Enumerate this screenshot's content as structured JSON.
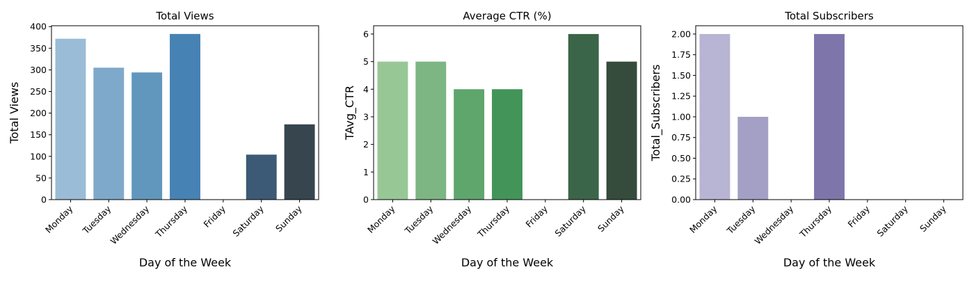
{
  "chart_data": [
    {
      "type": "bar",
      "title": "Total Views",
      "xlabel": "Day of the Week",
      "ylabel": "Total Views",
      "categories": [
        "Monday",
        "Tuesday",
        "Wednesday",
        "Thursday",
        "Friday",
        "Saturday",
        "Sunday"
      ],
      "values": [
        372,
        305,
        294,
        383,
        0,
        104,
        174
      ],
      "ylim": [
        0,
        402
      ],
      "yticks": [
        "0",
        "50",
        "100",
        "150",
        "200",
        "250",
        "300",
        "350",
        "400"
      ],
      "ytick_values": [
        0,
        50,
        100,
        150,
        200,
        250,
        300,
        350,
        400
      ],
      "colors": [
        "#9abcd6",
        "#7ea9ca",
        "#6297bd",
        "#4682b4",
        "#4a6e8e",
        "#3c5a75",
        "#37454f"
      ],
      "grid": false,
      "legend": false
    },
    {
      "type": "bar",
      "title": "Average CTR (%)",
      "xlabel": "Day of the Week",
      "ylabel": "TAvg_CTR",
      "categories": [
        "Monday",
        "Tuesday",
        "Wednesday",
        "Thursday",
        "Friday",
        "Saturday",
        "Sunday"
      ],
      "values": [
        5,
        5,
        4,
        4,
        0,
        6,
        5
      ],
      "ylim": [
        0,
        6.3
      ],
      "yticks": [
        "0",
        "1",
        "2",
        "3",
        "4",
        "5",
        "6"
      ],
      "ytick_values": [
        0,
        1,
        2,
        3,
        4,
        5,
        6
      ],
      "colors": [
        "#98c796",
        "#7db583",
        "#5ea66c",
        "#429459",
        "#3d6e4c",
        "#3a6548",
        "#354b3c"
      ],
      "grid": false,
      "legend": false
    },
    {
      "type": "bar",
      "title": "Total Subscribers",
      "xlabel": "Day of the Week",
      "ylabel": "Total_Subscribers",
      "categories": [
        "Monday",
        "Tuesday",
        "Wednesday",
        "Thursday",
        "Friday",
        "Saturday",
        "Sunday"
      ],
      "values": [
        2,
        1,
        0,
        2,
        0,
        0,
        0
      ],
      "ylim": [
        0,
        2.1
      ],
      "yticks": [
        "0.00",
        "0.25",
        "0.50",
        "0.75",
        "1.00",
        "1.25",
        "1.50",
        "1.75",
        "2.00"
      ],
      "ytick_values": [
        0,
        0.25,
        0.5,
        0.75,
        1.0,
        1.25,
        1.5,
        1.75,
        2.0
      ],
      "colors": [
        "#b8b4d3",
        "#a39fc5",
        "#918bb8",
        "#7e75ab",
        "#6d6598",
        "#5f5886",
        "#514b72"
      ],
      "grid": false,
      "legend": false
    }
  ]
}
